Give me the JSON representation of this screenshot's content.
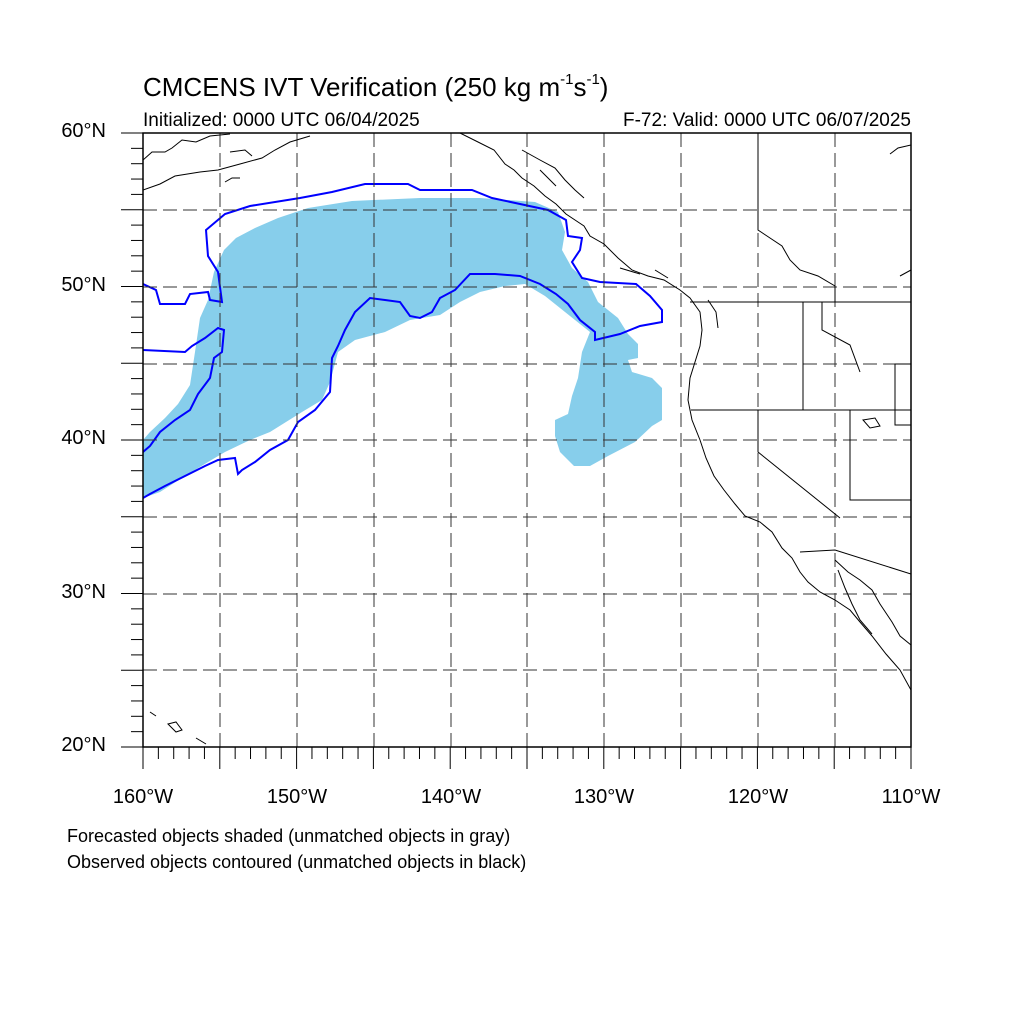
{
  "header": {
    "title_prefix": "CMCENS IVT Verification (250 kg m",
    "title_exp1": "-1",
    "title_mid": "s",
    "title_exp2": "-1",
    "title_suffix": ")",
    "initialized": "Initialized: 0000 UTC 06/04/2025",
    "valid": "F-72: Valid: 0000 UTC 06/07/2025"
  },
  "axes": {
    "lat_labels": [
      "60°N",
      "50°N",
      "40°N",
      "30°N",
      "20°N"
    ],
    "lon_labels": [
      "160°W",
      "150°W",
      "140°W",
      "130°W",
      "120°W",
      "110°W"
    ],
    "lat_range": [
      20,
      60
    ],
    "lon_range": [
      -160,
      -110
    ],
    "grid": true,
    "grid_style": "dashed"
  },
  "legend_notes": {
    "line1": "Forecasted objects shaded (unmatched objects in gray)",
    "line2": "Observed objects contoured (unmatched objects in black)"
  },
  "colors": {
    "forecast_fill": "#87ceeb",
    "observed_contour": "#0000ff",
    "coastline": "#000000",
    "grid": "#333333"
  }
}
